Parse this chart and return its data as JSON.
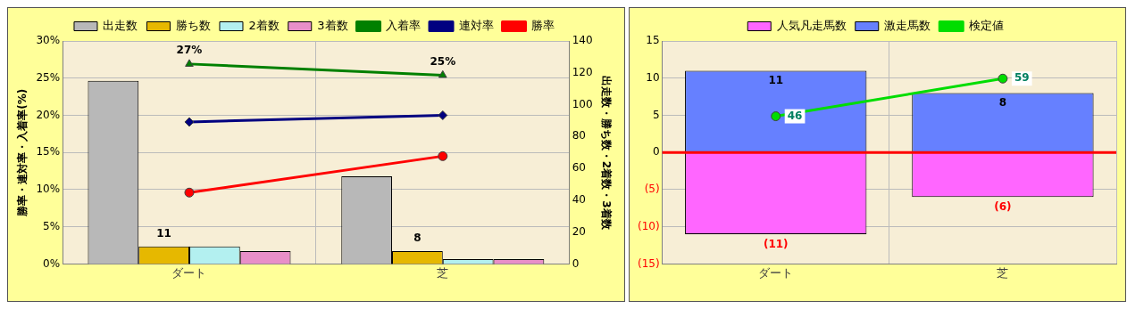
{
  "chart_data": [
    {
      "type": "bar",
      "categories": [
        "ダート",
        "芝"
      ],
      "ylabel": "勝率・連対率・入着率(%)",
      "y2label": "出走数・勝ち数・2着数・3着数",
      "ylim": [
        0,
        30
      ],
      "yticks": [
        {
          "value": 0,
          "label": "0%"
        },
        {
          "value": 5,
          "label": "5%"
        },
        {
          "value": 10,
          "label": "10%"
        },
        {
          "value": 15,
          "label": "15%"
        },
        {
          "value": 20,
          "label": "20%"
        },
        {
          "value": 25,
          "label": "25%"
        },
        {
          "value": 30,
          "label": "30%"
        }
      ],
      "y2lim": [
        0,
        140
      ],
      "y2ticks": [
        0,
        20,
        40,
        60,
        80,
        100,
        120,
        140
      ],
      "grid": true,
      "legend": "top",
      "series": [
        {
          "name": "出走数",
          "axis": "y2",
          "color": "#b8b8b8",
          "values": [
            115,
            55
          ]
        },
        {
          "name": "勝ち数",
          "axis": "y2",
          "color": "#e6b800",
          "values": [
            11,
            8
          ],
          "value_labels": [
            "11",
            "8"
          ]
        },
        {
          "name": "2着数",
          "axis": "y2",
          "color": "#b3f0f0",
          "values": [
            11,
            3
          ]
        },
        {
          "name": "3着数",
          "axis": "y2",
          "color": "#e88fc8",
          "values": [
            8,
            3
          ]
        },
        {
          "name": "入着率",
          "type": "line",
          "axis": "y",
          "color": "#008000",
          "marker": "triangle",
          "values": [
            26.9,
            25.4
          ],
          "value_labels": [
            "27%",
            "25%"
          ]
        },
        {
          "name": "連対率",
          "type": "line",
          "axis": "y",
          "color": "#000080",
          "marker": "diamond",
          "values": [
            19.1,
            20.0
          ]
        },
        {
          "name": "勝率",
          "type": "line",
          "axis": "y",
          "color": "#ff0000",
          "marker": "circle",
          "values": [
            9.6,
            14.5
          ]
        }
      ]
    },
    {
      "type": "bar",
      "categories": [
        "ダート",
        "芝"
      ],
      "stacked": true,
      "grid": true,
      "legend": "top",
      "tick_labels": "xy",
      "ylim": [
        -15,
        15
      ],
      "yticks": [
        {
          "value": -15,
          "label": "(15)"
        },
        {
          "value": -10,
          "label": "(10)"
        },
        {
          "value": -5,
          "label": "(5)"
        },
        0,
        5,
        10,
        15
      ],
      "y2lim": [
        -5,
        72
      ],
      "ref_lines": [
        {
          "axis": "y",
          "value": 0,
          "color": "#ff0000"
        }
      ],
      "series": [
        {
          "name": "人気凡走馬数",
          "axis": "y",
          "color": "#ff66ff",
          "values": [
            -11,
            -6
          ],
          "value_labels": [
            "(11)",
            "(6)"
          ]
        },
        {
          "name": "激走馬数",
          "axis": "y",
          "color": "#6680ff",
          "values": [
            11,
            8
          ],
          "value_labels": [
            "11",
            "8"
          ]
        },
        {
          "name": "検定値",
          "type": "line",
          "axis": "y2",
          "color": "#00dd00",
          "marker": "circle",
          "values": [
            46,
            59
          ],
          "value_labels": [
            "46",
            "59"
          ]
        }
      ]
    }
  ]
}
